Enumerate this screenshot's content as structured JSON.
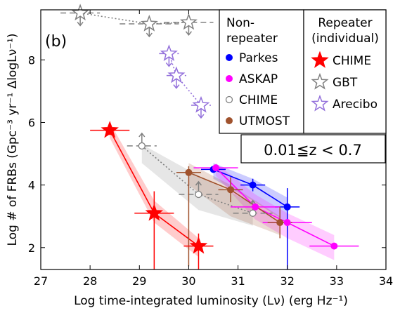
{
  "chart_data": {
    "type": "scatter",
    "panel_label": "(b)",
    "annotation": "0.01≦z < 0.7",
    "xlabel": "Log time-integrated luminosity (Lν) (erg Hz⁻¹)",
    "ylabel": "Log # of FRBs (Gpc⁻³ yr⁻¹ ΔlogLν⁻¹)",
    "xlim": [
      27,
      34
    ],
    "ylim": [
      1.3,
      9.6
    ],
    "xticks": [
      "27",
      "28",
      "29",
      "30",
      "31",
      "32",
      "33",
      "34"
    ],
    "yticks": [
      "2",
      "4",
      "6",
      "8"
    ],
    "legend_left": {
      "title": "Non-\nrepeater",
      "entries": [
        "Parkes",
        "ASKAP",
        "CHIME",
        "UTMOST"
      ]
    },
    "legend_right": {
      "title": "Repeater\n(individual)",
      "entries": [
        "CHIME",
        "GBT",
        "Arecibo"
      ]
    },
    "series": [
      {
        "name": "Parkes",
        "group": "non-repeater",
        "color": "#0000ff",
        "marker": "circle",
        "line": true,
        "points": [
          {
            "x": 30.5,
            "y": 4.5,
            "xerr": 0.25,
            "yerr": 0.1
          },
          {
            "x": 31.3,
            "y": 4.0,
            "xerr": 0.25,
            "yerr": 0.2
          },
          {
            "x": 32.0,
            "y": 3.3,
            "xerr": 0.25,
            "yerr_up": 0.6,
            "yerr_down": 2.0
          }
        ],
        "band_low": [
          4.2,
          3.5,
          2.8
        ],
        "band_high": [
          4.7,
          4.2,
          3.6
        ]
      },
      {
        "name": "ASKAP",
        "group": "non-repeater",
        "color": "#ff00ff",
        "marker": "circle",
        "line": true,
        "points": [
          {
            "x": 30.55,
            "y": 4.55,
            "xerr": 0.45,
            "yerr": 0.1
          },
          {
            "x": 31.35,
            "y": 3.3,
            "xerr": 0.5,
            "yerr": 0.1
          },
          {
            "x": 32.0,
            "y": 2.8,
            "xerr": 0.5,
            "yerr": 0.1
          },
          {
            "x": 32.95,
            "y": 2.05,
            "xerr": 0.5,
            "yerr": 0.1
          }
        ],
        "band_low": [
          4.3,
          2.9,
          2.3,
          1.6
        ],
        "band_high": [
          4.7,
          3.7,
          3.1,
          2.4
        ]
      },
      {
        "name": "CHIME",
        "group": "non-repeater",
        "color": "#808080",
        "marker": "open-circle",
        "line": true,
        "dotted": true,
        "points": [
          {
            "x": 29.05,
            "y": 5.25,
            "xerr": 0.3,
            "lower_limit": true
          },
          {
            "x": 30.2,
            "y": 3.7,
            "xerr": 0.4,
            "lower_limit": true
          },
          {
            "x": 31.3,
            "y": 3.1,
            "xerr": 0.4,
            "lower_limit": true
          }
        ],
        "band_low": [
          4.7,
          3.2,
          2.7
        ],
        "band_high": [
          5.3,
          4.3,
          3.4
        ]
      },
      {
        "name": "UTMOST",
        "group": "non-repeater",
        "color": "#a0522d",
        "marker": "circle",
        "line": true,
        "points": [
          {
            "x": 30.0,
            "y": 4.4,
            "xerr": 0.25,
            "yerr_up": 0.2,
            "yerr_down": 3.0
          },
          {
            "x": 30.85,
            "y": 3.85,
            "xerr": 0.25,
            "yerr": 0.4
          },
          {
            "x": 31.85,
            "y": 2.8,
            "xerr": 0.25,
            "yerr": 0.5
          }
        ],
        "band_low": [
          4.0,
          3.0,
          2.4
        ],
        "band_high": [
          4.7,
          4.0,
          3.0
        ]
      },
      {
        "name": "CHIME",
        "group": "repeater",
        "color": "#ff0000",
        "marker": "filled-star",
        "line": true,
        "points": [
          {
            "x": 28.4,
            "y": 5.75,
            "xerr": 0.4,
            "yerr": 0.15
          },
          {
            "x": 29.3,
            "y": 3.1,
            "xerr": 0.4,
            "yerr_up": 0.7,
            "yerr_down": 2.0
          },
          {
            "x": 30.2,
            "y": 2.05,
            "xerr": 0.3,
            "yerr_up": 0.4,
            "yerr_down": 1.0
          }
        ],
        "band_low": [
          5.5,
          2.8,
          1.7
        ],
        "band_high": [
          6.0,
          3.5,
          2.3
        ]
      },
      {
        "name": "GBT",
        "group": "repeater",
        "color": "#808080",
        "marker": "open-star",
        "line": true,
        "dotted": true,
        "points": [
          {
            "x": 27.8,
            "y": 9.5,
            "xerr": 0.4,
            "upper_limit": true
          },
          {
            "x": 29.2,
            "y": 9.15,
            "xerr": 0.6,
            "upper_limit": true
          },
          {
            "x": 30.0,
            "y": 9.2,
            "xerr": 0.5,
            "upper_limit": true
          }
        ]
      },
      {
        "name": "Arecibo",
        "group": "repeater",
        "color": "#9370db",
        "marker": "open-star",
        "line": true,
        "dotted": true,
        "points": [
          {
            "x": 29.6,
            "y": 8.2,
            "xerr": 0.2,
            "upper_limit": true
          },
          {
            "x": 29.75,
            "y": 7.5,
            "xerr": 0.2,
            "upper_limit": true
          },
          {
            "x": 30.25,
            "y": 6.55,
            "xerr": 0.2,
            "upper_limit": true
          }
        ]
      }
    ]
  }
}
